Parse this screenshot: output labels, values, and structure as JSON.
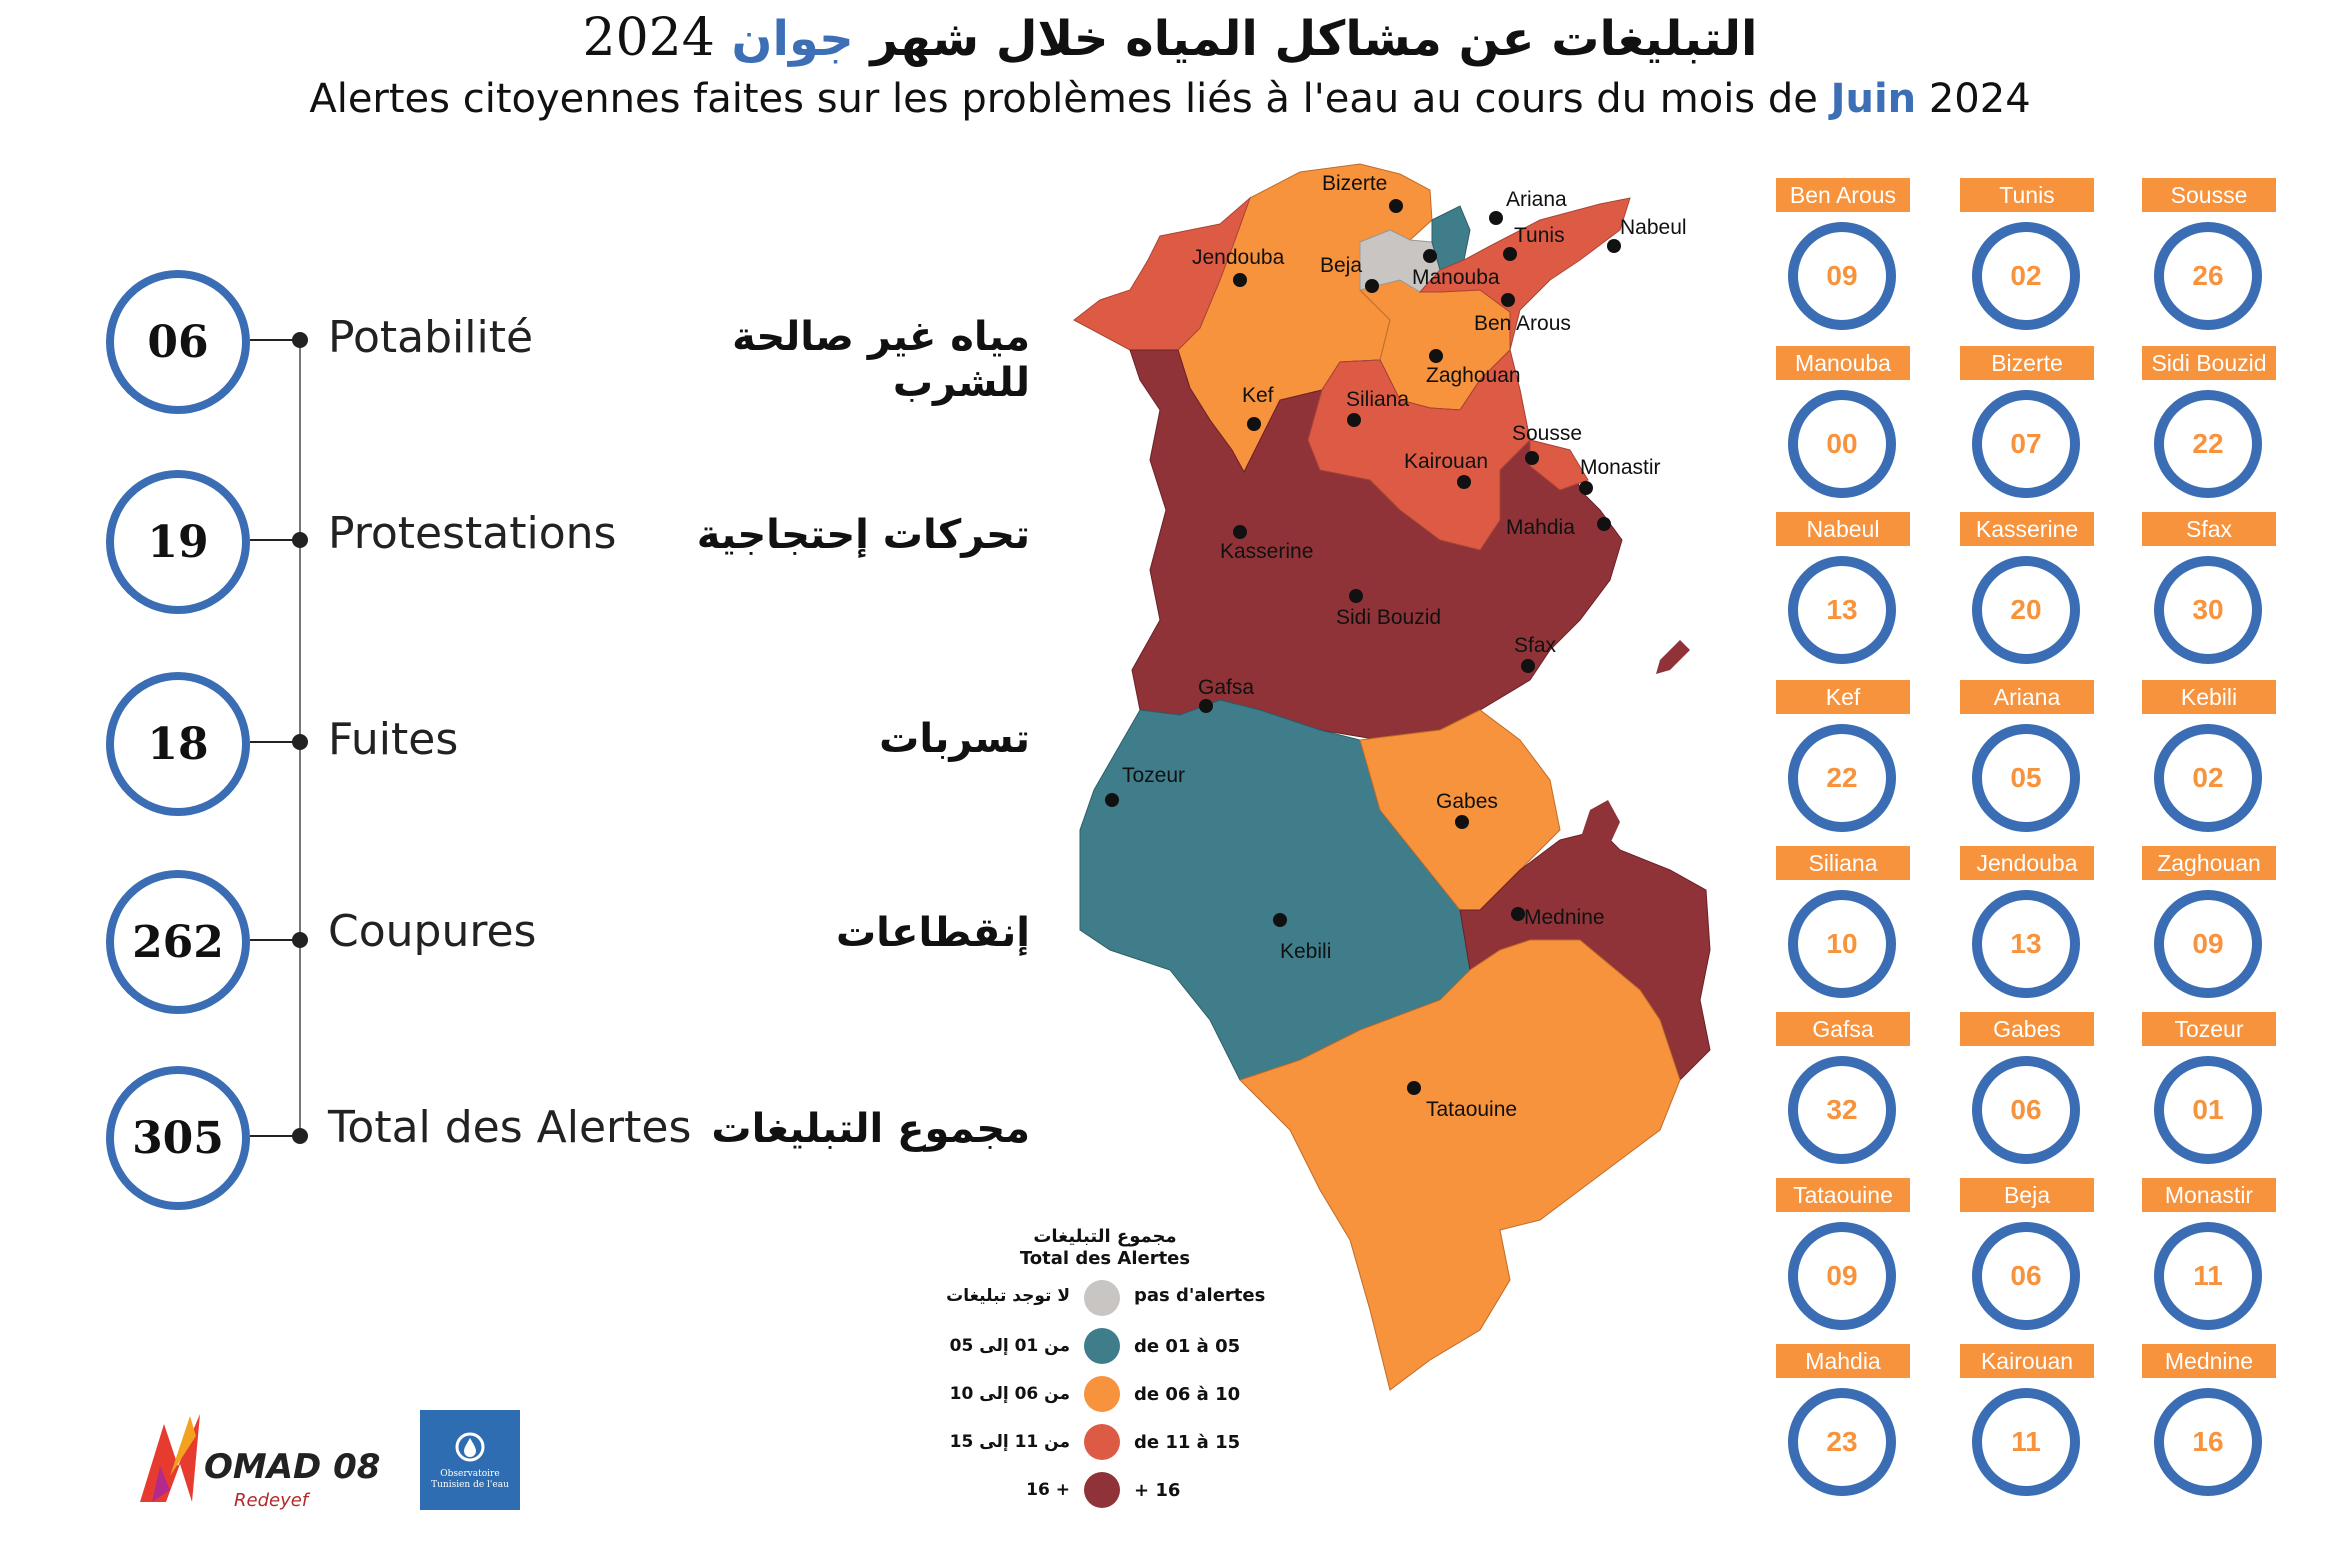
{
  "title": {
    "ar_prefix": "التبليغات عن مشاكل المياه خلال شهر",
    "ar_month": "جوان",
    "ar_year": "2024",
    "fr_prefix": "Alertes citoyennes faites sur les problèmes liés à l'eau au cours du mois de",
    "fr_month": "Juin",
    "fr_year": "2024"
  },
  "stats": [
    {
      "value": "06",
      "fr": "Potabilité",
      "ar": "مياه غير صالحة للشرب"
    },
    {
      "value": "19",
      "fr": "Protestations",
      "ar": "تحركات إحتجاجية"
    },
    {
      "value": "18",
      "fr": "Fuites",
      "ar": "تسربات"
    },
    {
      "value": "262",
      "fr": "Coupures",
      "ar": "إنقطاعات"
    },
    {
      "value": "305",
      "fr": "Total des Alertes",
      "ar": "مجموع التبليغات"
    }
  ],
  "governorates": [
    {
      "name": "Ben Arous",
      "value": "09"
    },
    {
      "name": "Tunis",
      "value": "02"
    },
    {
      "name": "Sousse",
      "value": "26"
    },
    {
      "name": "Manouba",
      "value": "00"
    },
    {
      "name": "Bizerte",
      "value": "07"
    },
    {
      "name": "Sidi Bouzid",
      "value": "22"
    },
    {
      "name": "Nabeul",
      "value": "13"
    },
    {
      "name": "Kasserine",
      "value": "20"
    },
    {
      "name": "Sfax",
      "value": "30"
    },
    {
      "name": "Kef",
      "value": "22"
    },
    {
      "name": "Ariana",
      "value": "05"
    },
    {
      "name": "Kebili",
      "value": "02"
    },
    {
      "name": "Siliana",
      "value": "10"
    },
    {
      "name": "Jendouba",
      "value": "13"
    },
    {
      "name": "Zaghouan",
      "value": "09"
    },
    {
      "name": "Gafsa",
      "value": "32"
    },
    {
      "name": "Gabes",
      "value": "06"
    },
    {
      "name": "Tozeur",
      "value": "01"
    },
    {
      "name": "Tataouine",
      "value": "09"
    },
    {
      "name": "Beja",
      "value": "06"
    },
    {
      "name": "Monastir",
      "value": "11"
    },
    {
      "name": "Mahdia",
      "value": "23"
    },
    {
      "name": "Kairouan",
      "value": "11"
    },
    {
      "name": "Mednine",
      "value": "16"
    }
  ],
  "map": {
    "cities": [
      "Bizerte",
      "Ariana",
      "Tunis",
      "Nabeul",
      "Jendouba",
      "Beja",
      "Manouba",
      "Ben Arous",
      "Zaghouan",
      "Kef",
      "Siliana",
      "Sousse",
      "Kairouan",
      "Monastir",
      "Mahdia",
      "Kasserine",
      "Sidi Bouzid",
      "Sfax",
      "Gafsa",
      "Tozeur",
      "Gabes",
      "Mednine",
      "Kebili",
      "Tataouine"
    ],
    "colors": {
      "none": "#c8c5c2",
      "c1": "#3f7d8a",
      "c2": "#f7923d",
      "c3": "#dd5b45",
      "c4": "#8f3338"
    }
  },
  "legend": {
    "title_ar": "مجموع التبليغات",
    "title_fr": "Total des Alertes",
    "items": [
      {
        "fr": "pas d'alertes",
        "ar": "لا توجد تبليغات",
        "color": "#c8c5c2"
      },
      {
        "fr": "de 01 à 05",
        "ar": "من 01 إلى 05",
        "color": "#3f7d8a"
      },
      {
        "fr": "de 06 à 10",
        "ar": "من 06 إلى 10",
        "color": "#f7923d"
      },
      {
        "fr": "de 11 à 15",
        "ar": "من 11 إلى 15",
        "color": "#dd5b45"
      },
      {
        "fr": "+ 16",
        "ar": "+ 16",
        "color": "#8f3338"
      }
    ]
  },
  "logos": {
    "nomad": "OMAD 08",
    "nomad_sub": "Redeyef",
    "obs": "Observatoire Tunisien de l'eau"
  }
}
